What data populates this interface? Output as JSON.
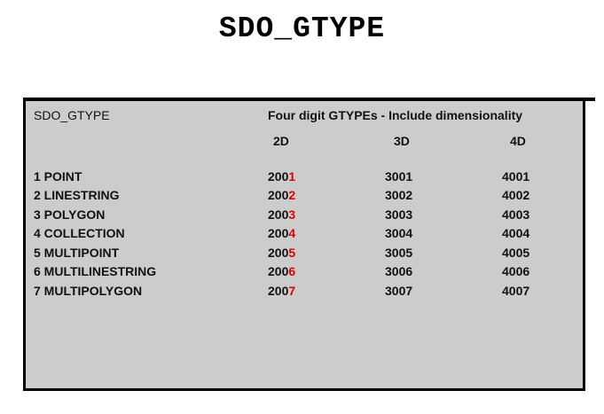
{
  "title": "SDO_GTYPE",
  "table": {
    "left_header": "SDO_GTYPE",
    "right_header": "Four digit  GTYPEs - Include dimensionality",
    "col_2d": "2D",
    "col_3d": "3D",
    "col_4d": "4D",
    "rows": [
      {
        "name": "1  POINT",
        "v2_prefix": "200",
        "v2_suffix": "1",
        "v3": "3001",
        "v4": "4001"
      },
      {
        "name": "2  LINESTRING",
        "v2_prefix": "200",
        "v2_suffix": "2",
        "v3": "3002",
        "v4": "4002"
      },
      {
        "name": "3  POLYGON",
        "v2_prefix": "200",
        "v2_suffix": "3",
        "v3": "3003",
        "v4": "4003"
      },
      {
        "name": "4 COLLECTION",
        "v2_prefix": "200",
        "v2_suffix": "4",
        "v3": "3004",
        "v4": "4004"
      },
      {
        "name": "5 MULTIPOINT",
        "v2_prefix": "200",
        "v2_suffix": "5",
        "v3": "3005",
        "v4": "4005"
      },
      {
        "name": "6 MULTILINESTRING",
        "v2_prefix": "200",
        "v2_suffix": "6",
        "v3": "3006",
        "v4": "4006"
      },
      {
        "name": "7 MULTIPOLYGON",
        "v2_prefix": "200",
        "v2_suffix": "7",
        "v3": "3007",
        "v4": "4007"
      }
    ]
  },
  "colors": {
    "panel_bg": "#cccccc",
    "highlight": "#e00000"
  }
}
